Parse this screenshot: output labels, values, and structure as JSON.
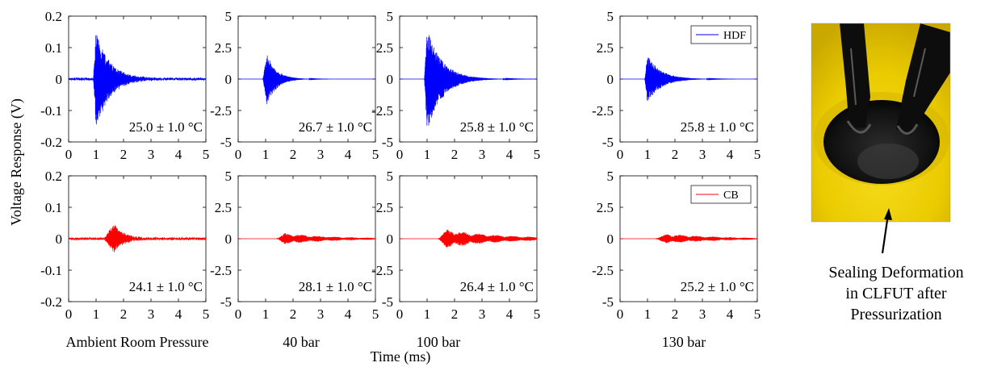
{
  "figure": {
    "ylabel": "Voltage Response (V)",
    "xlabel": "Time (ms)",
    "column_labels": [
      "Ambient Room Pressure",
      "40 bar",
      "100 bar",
      "130 bar"
    ],
    "photo_caption": [
      "Sealing Deformation",
      "in CLFUT after",
      "Pressurization"
    ],
    "colors": {
      "hdf": "#0000ff",
      "cb": "#ff0000",
      "photo_yellow": "#f2d200",
      "photo_dark": "#141414"
    }
  },
  "chart_data": [
    {
      "type": "line",
      "row": "HDF",
      "condition": "Ambient Room Pressure",
      "xlim": [
        0,
        5
      ],
      "ylim": [
        -0.2,
        0.2
      ],
      "xticks": [
        "0",
        "1",
        "2",
        "3",
        "4",
        "5"
      ],
      "yticks": [
        "0.2",
        "0.1",
        "0",
        "-0.1",
        "-0.2"
      ],
      "series": [
        {
          "name": "HDF",
          "color": "#0000ff",
          "burst_start": 0.9,
          "peak_time": 1.0,
          "peak": 0.155,
          "trough": -0.16,
          "decay": 0.5,
          "noise": 0.004,
          "style": "dense_noise"
        }
      ],
      "annotation": "25.0 ± 1.0 °C"
    },
    {
      "type": "line",
      "row": "HDF",
      "condition": "40 bar",
      "xlim": [
        0,
        5
      ],
      "ylim": [
        -5,
        5
      ],
      "xticks": [
        "0",
        "1",
        "2",
        "3",
        "4",
        "5"
      ],
      "yticks": [
        "5",
        "2.5",
        "0",
        "-2.5",
        "-5"
      ],
      "series": [
        {
          "name": "HDF",
          "color": "#0000ff",
          "burst_start": 0.9,
          "peak_time": 1.05,
          "peak": 2.0,
          "trough": -2.1,
          "decay": 0.35,
          "noise": 0.0,
          "style": "clean"
        }
      ],
      "annotation": "26.7 ± 1.0 °C"
    },
    {
      "type": "line",
      "row": "HDF",
      "condition": "100 bar",
      "xlim": [
        0,
        5
      ],
      "ylim": [
        -5,
        5
      ],
      "xticks": [
        "0",
        "1",
        "2",
        "3",
        "4",
        "5"
      ],
      "yticks": [
        "5",
        "2.5",
        "0",
        "-2.5",
        "-5"
      ],
      "series": [
        {
          "name": "HDF",
          "color": "#0000ff",
          "burst_start": 0.9,
          "peak_time": 1.0,
          "peak": 4.0,
          "trough": -4.2,
          "decay": 0.55,
          "noise": 0.0,
          "style": "clean"
        }
      ],
      "annotation": "25.8 ± 1.0 °C"
    },
    {
      "type": "line",
      "row": "HDF",
      "condition": "130 bar",
      "xlim": [
        0,
        5
      ],
      "ylim": [
        -5,
        5
      ],
      "xticks": [
        "0",
        "1",
        "2",
        "3",
        "4",
        "5"
      ],
      "yticks": [
        "5",
        "2.5",
        "0",
        "-2.5",
        "-5"
      ],
      "series": [
        {
          "name": "HDF",
          "color": "#0000ff",
          "burst_start": 0.9,
          "peak_time": 1.0,
          "peak": 1.9,
          "trough": -1.9,
          "decay": 0.5,
          "noise": 0.0,
          "style": "clean"
        }
      ],
      "legend": "HDF",
      "legend_position": "top-right",
      "annotation": "25.8 ± 1.0 °C"
    },
    {
      "type": "line",
      "row": "CB",
      "condition": "Ambient Room Pressure",
      "xlim": [
        0,
        5
      ],
      "ylim": [
        -0.2,
        0.2
      ],
      "xticks": [
        "0",
        "1",
        "2",
        "3",
        "4",
        "5"
      ],
      "yticks": [
        "0.2",
        "0.1",
        "0",
        "-0.1",
        "-0.2"
      ],
      "series": [
        {
          "name": "CB",
          "color": "#ff0000",
          "burst_start": 1.3,
          "peak_time": 1.65,
          "peak": 0.05,
          "trough": -0.045,
          "decay": 0.35,
          "noise": 0.004,
          "style": "dense_noise"
        }
      ],
      "annotation": "24.1 ± 1.0 °C"
    },
    {
      "type": "line",
      "row": "CB",
      "condition": "40 bar",
      "xlim": [
        0,
        5
      ],
      "ylim": [
        -5,
        5
      ],
      "xticks": [
        "0",
        "1",
        "2",
        "3",
        "4",
        "5"
      ],
      "yticks": [
        "5",
        "2.5",
        "0",
        "-2.5",
        "-5"
      ],
      "series": [
        {
          "name": "CB",
          "color": "#ff0000",
          "burst_start": 1.4,
          "peak_time": 1.7,
          "peak": 0.45,
          "trough": -0.45,
          "decay": 1.8,
          "noise": 0.0,
          "style": "clean"
        }
      ],
      "annotation": "28.1 ± 1.0 °C"
    },
    {
      "type": "line",
      "row": "CB",
      "condition": "100 bar",
      "xlim": [
        0,
        5
      ],
      "ylim": [
        -5,
        5
      ],
      "xticks": [
        "0",
        "1",
        "2",
        "3",
        "4",
        "5"
      ],
      "yticks": [
        "5",
        "2.5",
        "0",
        "-2.5",
        "-5"
      ],
      "series": [
        {
          "name": "CB",
          "color": "#ff0000",
          "burst_start": 1.4,
          "peak_time": 1.7,
          "peak": 0.75,
          "trough": -0.75,
          "decay": 2.0,
          "noise": 0.0,
          "style": "clean"
        }
      ],
      "annotation": "26.4 ± 1.0 °C"
    },
    {
      "type": "line",
      "row": "CB",
      "condition": "130 bar",
      "xlim": [
        0,
        5
      ],
      "ylim": [
        -5,
        5
      ],
      "xticks": [
        "0",
        "1",
        "2",
        "3",
        "4",
        "5"
      ],
      "yticks": [
        "5",
        "2.5",
        "0",
        "-2.5",
        "-5"
      ],
      "series": [
        {
          "name": "CB",
          "color": "#ff0000",
          "burst_start": 1.3,
          "peak_time": 1.7,
          "peak": 0.4,
          "trough": -0.4,
          "decay": 2.0,
          "noise": 0.0,
          "style": "clean"
        }
      ],
      "legend": "CB",
      "legend_position": "top-right",
      "annotation": "25.2 ± 1.0 °C"
    }
  ]
}
